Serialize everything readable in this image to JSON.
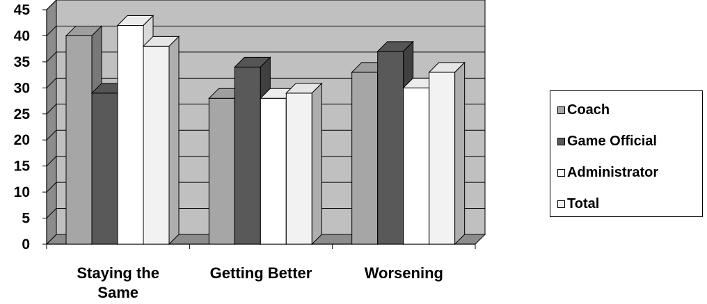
{
  "chart_data": {
    "type": "bar",
    "categories": [
      "Staying the Same",
      "Getting Better",
      "Worsening"
    ],
    "series": [
      {
        "name": "Coach",
        "values": [
          40,
          28,
          33
        ],
        "color": "#a6a6a6"
      },
      {
        "name": "Game Official",
        "values": [
          29,
          34,
          37
        ],
        "color": "#595959"
      },
      {
        "name": "Administrator",
        "values": [
          42,
          28,
          30
        ],
        "color": "#ffffff"
      },
      {
        "name": "Total",
        "values": [
          38,
          29,
          33
        ],
        "color": "#f2f2f2"
      }
    ],
    "ylim": [
      0,
      45
    ],
    "yticks": [
      "0",
      "5",
      "10",
      "15",
      "20",
      "25",
      "30",
      "35",
      "40",
      "45"
    ],
    "grid": true,
    "legend_position": "right",
    "style": "3d-clustered-column"
  }
}
